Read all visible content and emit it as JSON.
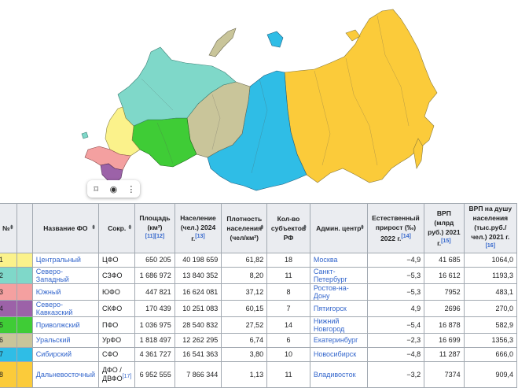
{
  "colors": {
    "central": "#fbf28b",
    "northwest": "#7fd8c9",
    "south": "#f4a0a0",
    "caucasus": "#9c62a8",
    "volga": "#3fcc36",
    "ural": "#c9c59a",
    "siberia": "#2fbde6",
    "fareast": "#fbcb3a"
  },
  "toolbar": {
    "bookmark": "bookmark-icon",
    "lens": "lens-icon",
    "more": "more-icon"
  },
  "headers": {
    "num": "№",
    "name": "Название ФО",
    "abbr": "Сокр.",
    "area": "Площадь (км²)",
    "area_ref": "[11][12]",
    "pop": "Население (чел.) 2024 г.",
    "pop_ref": "[13]",
    "density": "Плотность населения (чел/км²)",
    "subjects": "Кол-во субъектов РФ",
    "center": "Админ. центр",
    "growth": "Естественный прирост (‰) 2022 г.",
    "growth_ref": "[14]",
    "grp": "ВРП (млрд руб.) 2021 г.",
    "grp_ref": "[15]",
    "grppc": "ВРП на душу населения (тыс.руб./чел.) 2021 г.",
    "grppc_ref": "[16]"
  },
  "rows": [
    {
      "n": "1",
      "name": "Центральный",
      "abbr": "ЦФО",
      "area": "650 205",
      "pop": "40 198 659",
      "density": "61,82",
      "subjects": "18",
      "center": "Москва",
      "growth": "−4,9",
      "grp": "41 685",
      "grppc": "1064,0"
    },
    {
      "n": "2",
      "name": "Северо-Западный",
      "abbr": "СЗФО",
      "area": "1 686 972",
      "pop": "13 840 352",
      "density": "8,20",
      "subjects": "11",
      "center": "Санкт-Петербург",
      "growth": "−5,3",
      "grp": "16 612",
      "grppc": "1193,3"
    },
    {
      "n": "3",
      "name": "Южный",
      "abbr": "ЮФО",
      "area": "447 821",
      "pop": "16 624 081",
      "density": "37,12",
      "subjects": "8",
      "center": "Ростов-на-Дону",
      "growth": "−5,3",
      "grp": "7952",
      "grppc": "483,1"
    },
    {
      "n": "4",
      "name": "Северо-Кавказский",
      "abbr": "СКФО",
      "area": "170 439",
      "pop": "10 251 083",
      "density": "60,15",
      "subjects": "7",
      "center": "Пятигорск",
      "growth": "4,9",
      "grp": "2696",
      "grppc": "270,0"
    },
    {
      "n": "5",
      "name": "Приволжский",
      "abbr": "ПФО",
      "area": "1 036 975",
      "pop": "28 540 832",
      "density": "27,52",
      "subjects": "14",
      "center": "Нижний Новгород",
      "growth": "−5,4",
      "grp": "16 878",
      "grppc": "582,9"
    },
    {
      "n": "6",
      "name": "Уральский",
      "abbr": "УрФО",
      "area": "1 818 497",
      "pop": "12 262 295",
      "density": "6,74",
      "subjects": "6",
      "center": "Екатеринбург",
      "growth": "−2,3",
      "grp": "16 699",
      "grppc": "1356,3"
    },
    {
      "n": "7",
      "name": "Сибирский",
      "abbr": "СФО",
      "area": "4 361 727",
      "pop": "16 541 363",
      "density": "3,80",
      "subjects": "10",
      "center": "Новосибирск",
      "growth": "−4,8",
      "grp": "11 287",
      "grppc": "666,0"
    },
    {
      "n": "8",
      "name": "Дальневосточный",
      "abbr": "ДФО / ДВФО",
      "abbr_ref": "[17]",
      "area": "6 952 555",
      "pop": "7 866 344",
      "density": "1,13",
      "subjects": "11",
      "center": "Владивосток",
      "growth": "−3,2",
      "grp": "7374",
      "grppc": "909,4"
    }
  ]
}
